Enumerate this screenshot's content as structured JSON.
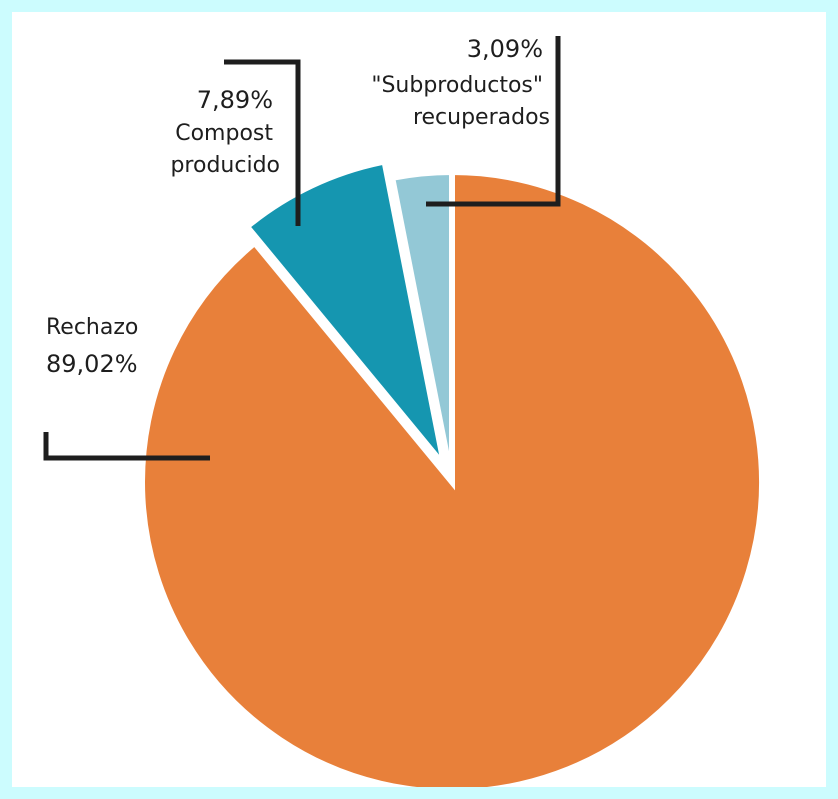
{
  "chart_data": {
    "type": "pie",
    "title": "",
    "slices": [
      {
        "label": "Rechazo",
        "value": 89.02,
        "display": "89,02%",
        "color": "#e8803a",
        "exploded": false
      },
      {
        "label": "Compost\nproducido",
        "value": 7.89,
        "display": "7,89%",
        "color": "#1596b0",
        "exploded": true
      },
      {
        "label": "\"Subproductos\"\nrecuperados",
        "value": 3.09,
        "display": "3,09%",
        "color": "#93c8d6",
        "exploded": false
      }
    ]
  },
  "colors": {
    "background": "#ccfcfe",
    "panel": "#ffffff",
    "leader_lines": "#1e1e1e"
  }
}
